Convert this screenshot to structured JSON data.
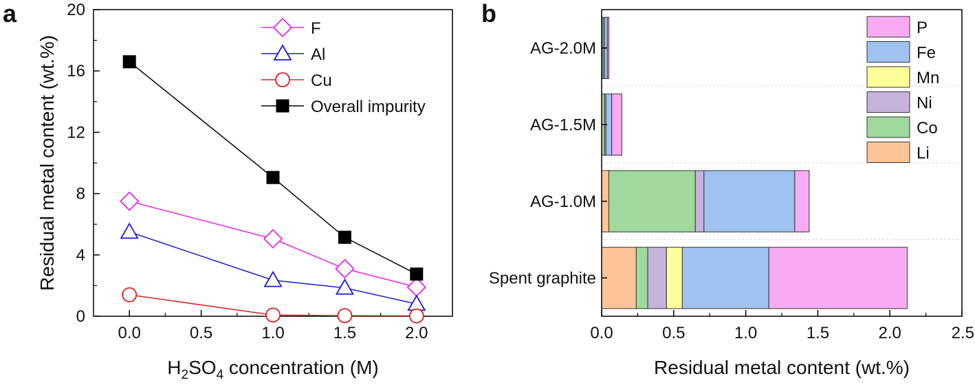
{
  "chart_data": [
    {
      "panel": "a",
      "type": "line",
      "xlabel": {
        "prefix": "H",
        "sub1": "2",
        "mid": "SO",
        "sub2": "4",
        "suffix": " concentration (M)"
      },
      "ylabel": "Residual metal content (wt.%)",
      "xlim": [
        -0.25,
        2.25
      ],
      "ylim": [
        0,
        20
      ],
      "x_ticks": [
        "0.0",
        "0.5",
        "1.0",
        "1.5",
        "2.0"
      ],
      "y_ticks": [
        "0",
        "4",
        "8",
        "12",
        "16",
        "20"
      ],
      "x": [
        0.0,
        1.0,
        1.5,
        2.0
      ],
      "series": [
        {
          "name": "F",
          "values": [
            7.5,
            5.05,
            3.1,
            1.9
          ],
          "color": "#e628e6",
          "marker": "diamond-open"
        },
        {
          "name": "Al",
          "values": [
            5.5,
            2.35,
            1.85,
            0.8
          ],
          "color": "#1a1ad6",
          "marker": "triangle-open"
        },
        {
          "name": "Cu",
          "values": [
            1.4,
            0.08,
            0.04,
            0.02
          ],
          "color": "#e01e1e",
          "marker": "circle-open"
        },
        {
          "name": "Overall impurity",
          "values": [
            16.6,
            9.05,
            5.15,
            2.75
          ],
          "color": "#000000",
          "marker": "square-filled"
        }
      ],
      "legend_position": "top-right"
    },
    {
      "panel": "b",
      "type": "bar",
      "orientation": "horizontal",
      "stacked": true,
      "xlabel": "Residual metal content (wt.%)",
      "xlim": [
        0,
        2.5
      ],
      "x_ticks": [
        "0.0",
        "0.5",
        "1.0",
        "1.5",
        "2.0",
        "2.5"
      ],
      "categories": [
        "AG-2.0M",
        "AG-1.5M",
        "AG-1.0M",
        "Spent graphite"
      ],
      "series": [
        {
          "name": "Li",
          "color": "#fbc597",
          "values": [
            0.0,
            0.0,
            0.05,
            0.24
          ]
        },
        {
          "name": "Co",
          "color": "#9fd99d",
          "values": [
            0.01,
            0.02,
            0.6,
            0.08
          ]
        },
        {
          "name": "Ni",
          "color": "#c5b3db",
          "values": [
            0.01,
            0.01,
            0.06,
            0.13
          ]
        },
        {
          "name": "Mn",
          "color": "#fdfd9a",
          "values": [
            0.0,
            0.0,
            0.0,
            0.11
          ]
        },
        {
          "name": "Fe",
          "color": "#9fc2f0",
          "values": [
            0.02,
            0.04,
            0.63,
            0.6
          ]
        },
        {
          "name": "P",
          "color": "#f8abf3",
          "values": [
            0.01,
            0.07,
            0.1,
            0.96
          ]
        }
      ],
      "legend_order": [
        "P",
        "Fe",
        "Mn",
        "Ni",
        "Co",
        "Li"
      ],
      "legend_position": "top-right",
      "grid": "horizontal dashed separators"
    }
  ]
}
